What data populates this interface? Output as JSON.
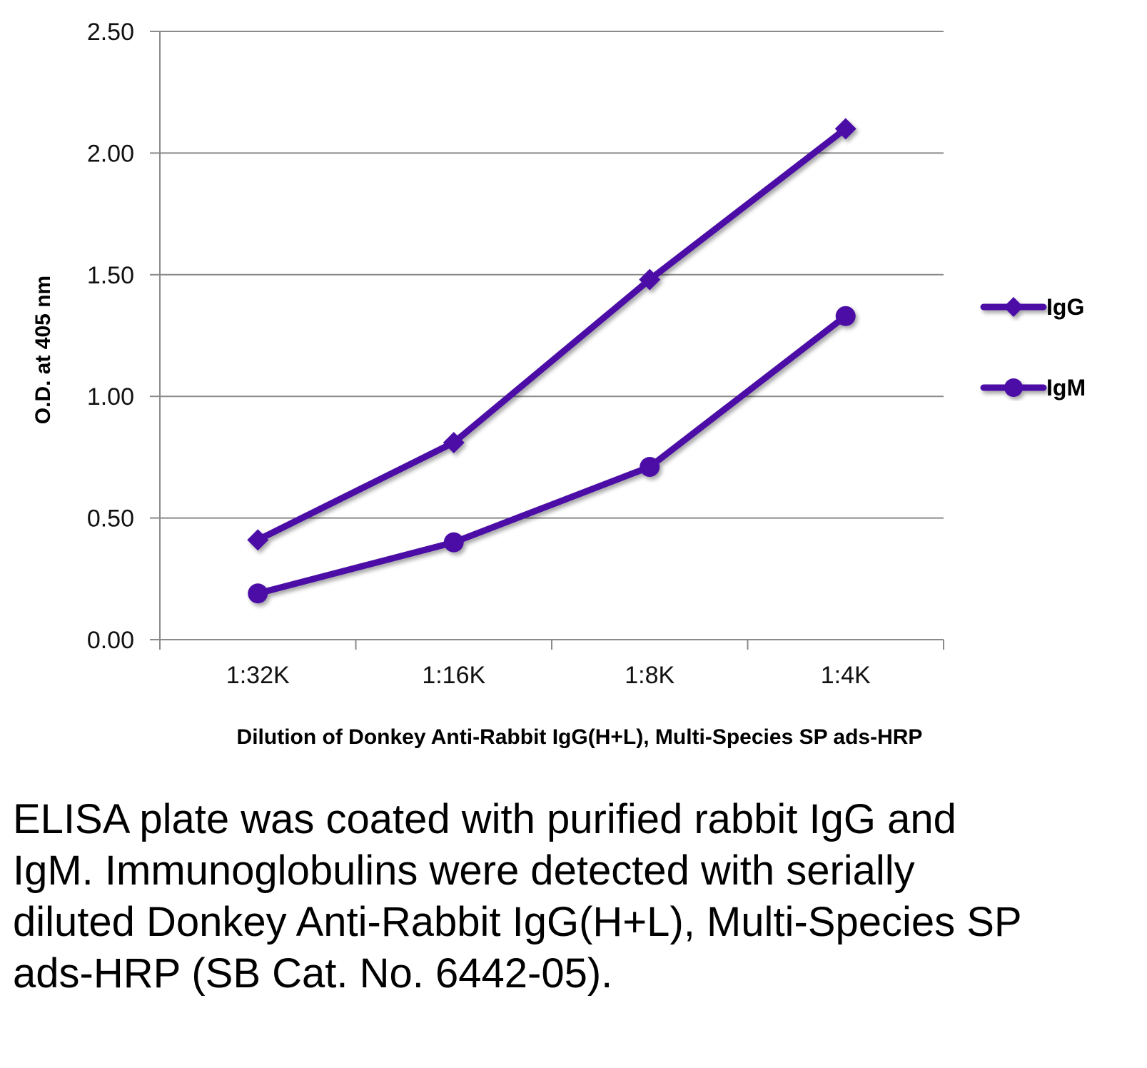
{
  "chart_data": {
    "type": "line",
    "title": "",
    "xlabel": "Dilution of Donkey Anti-Rabbit IgG(H+L), Multi-Species SP ads-HRP",
    "ylabel": "O.D. at 405 nm",
    "categories": [
      "1:32K",
      "1:16K",
      "1:8K",
      "1:4K"
    ],
    "ylim": [
      0,
      2.5
    ],
    "yticks": [
      0,
      0.5,
      1.0,
      1.5,
      2.0,
      2.5
    ],
    "ytick_labels": [
      "0.00",
      "0.50",
      "1.00",
      "1.50",
      "2.00",
      "2.50"
    ],
    "grid": true,
    "legend_position": "right",
    "series": [
      {
        "name": "IgG",
        "marker": "diamond",
        "color": "#4b0fa6",
        "values": [
          0.41,
          0.81,
          1.48,
          2.1
        ]
      },
      {
        "name": "IgM",
        "marker": "circle",
        "color": "#4b0fa6",
        "values": [
          0.19,
          0.4,
          0.71,
          1.33
        ]
      }
    ]
  },
  "caption": "ELISA plate was coated with purified rabbit IgG and IgM.  Immunoglobulins were detected with serially diluted Donkey Anti-Rabbit IgG(H+L), Multi-Species SP ads-HRP (SB Cat. No. 6442-05)."
}
